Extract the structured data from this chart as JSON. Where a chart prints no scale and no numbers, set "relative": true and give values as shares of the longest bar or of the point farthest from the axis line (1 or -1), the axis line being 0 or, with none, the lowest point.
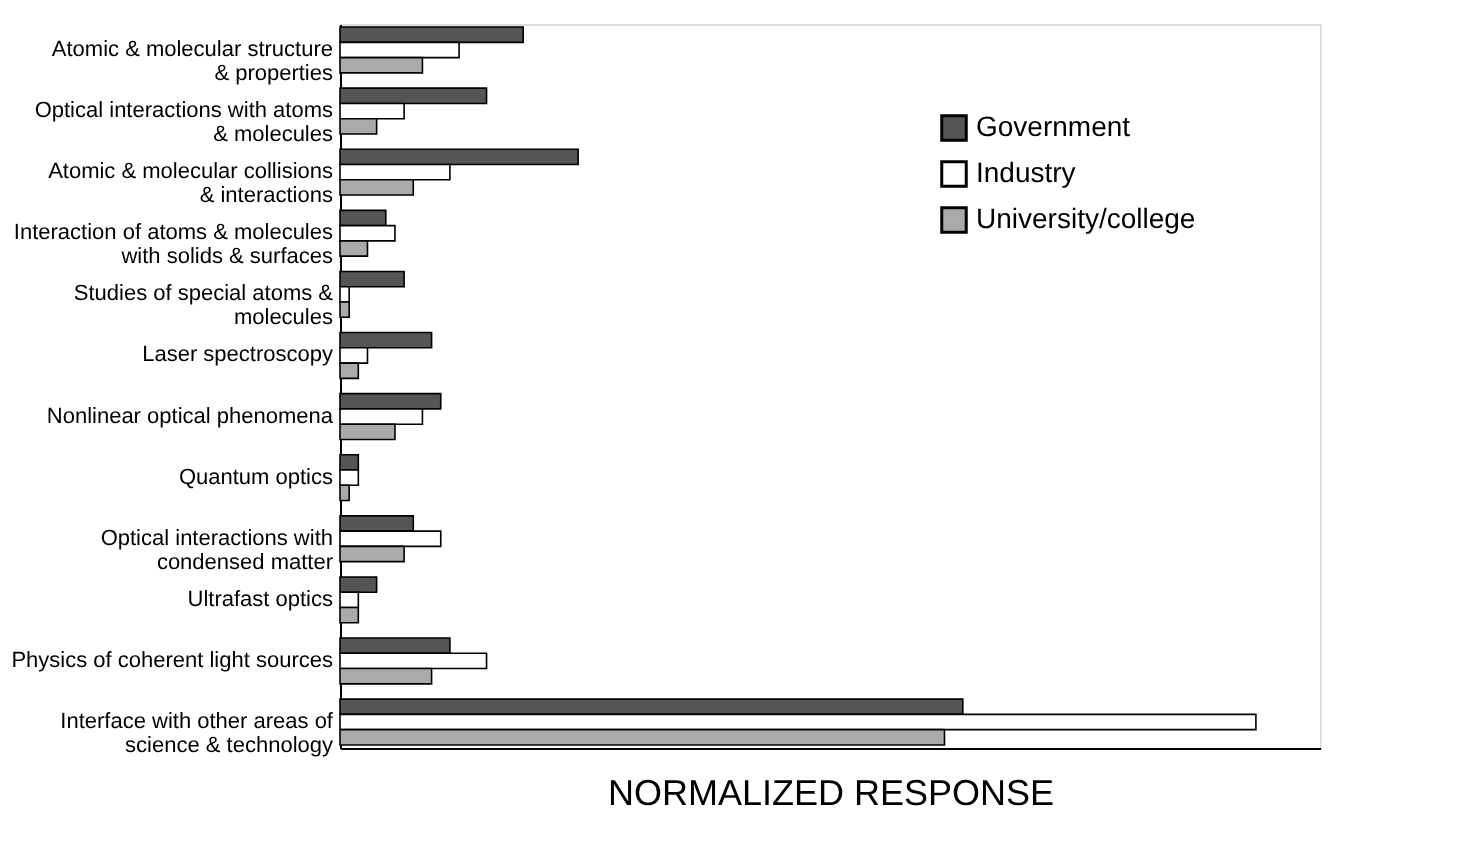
{
  "chart_data": {
    "type": "bar",
    "orientation": "horizontal",
    "relative": true,
    "xlabel": "NORMALIZED RESPONSE",
    "legend": "top right",
    "categories": [
      "Atomic & molecular structure\n& properties",
      "Optical interactions with atoms\n& molecules",
      "Atomic & molecular collisions\n& interactions",
      "Interaction of atoms & molecules\nwith solids & surfaces",
      "Studies of special atoms &\nmolecules",
      "Laser spectroscopy",
      "Nonlinear optical phenomena",
      "Quantum optics",
      "Optical interactions with\ncondensed matter",
      "Ultrafast optics",
      "Physics of coherent light sources",
      "Interface with other areas of\nscience & technology"
    ],
    "series": [
      {
        "name": "Government",
        "color": "#555555",
        "values": [
          0.2,
          0.16,
          0.26,
          0.05,
          0.07,
          0.1,
          0.11,
          0.02,
          0.08,
          0.04,
          0.12,
          0.68
        ]
      },
      {
        "name": "Industry",
        "color": "#ffffff",
        "values": [
          0.13,
          0.07,
          0.12,
          0.06,
          0.01,
          0.03,
          0.09,
          0.02,
          0.11,
          0.02,
          0.16,
          1
        ]
      },
      {
        "name": "University/college",
        "color": "#aaaaaa",
        "values": [
          0.09,
          0.04,
          0.08,
          0.03,
          0.01,
          0.02,
          0.06,
          0.01,
          0.07,
          0.02,
          0.1,
          0.66
        ]
      }
    ]
  }
}
